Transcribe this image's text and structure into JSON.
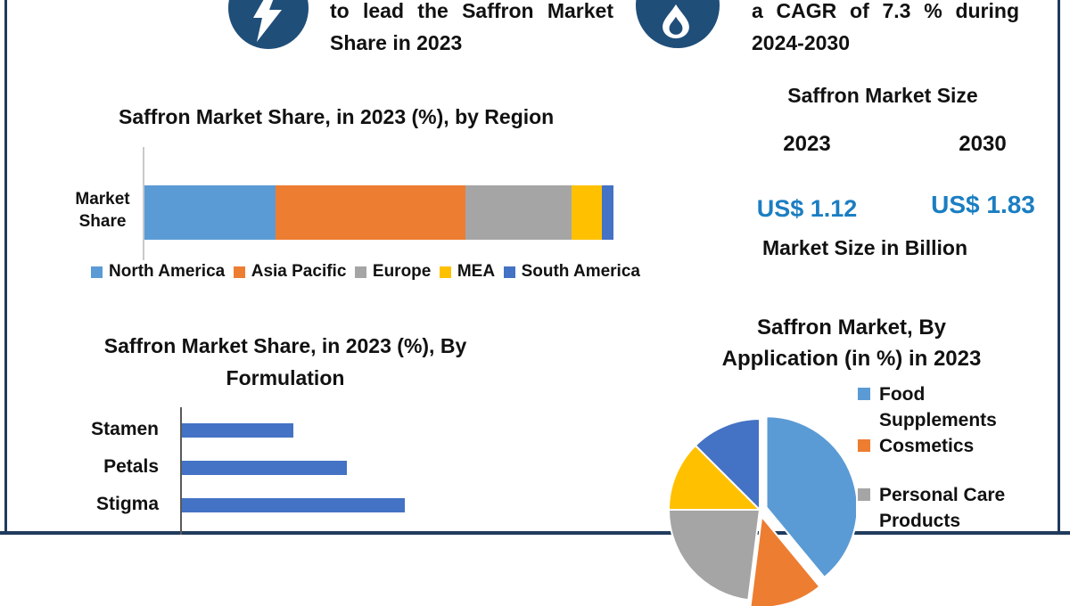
{
  "page": {
    "background": "#ffffff",
    "frame_color": "#1f3b5c",
    "icon_circle_color": "#1f4e79",
    "value_text_color": "#1b7ec2"
  },
  "header": {
    "highlight_region": {
      "icon": "lightning-icon",
      "text": "to lead the Saffron Market Share in 2023"
    },
    "highlight_cagr": {
      "icon": "flame-icon",
      "text": "a CAGR of 7.3 % during 2024-2030"
    }
  },
  "market_size": {
    "title": "Saffron Market Size",
    "year_start": "2023",
    "year_end": "2030",
    "value_start": "US$ 1.12",
    "value_end": "US$ 1.83",
    "caption": "Market Size in Billion"
  },
  "chart_data": [
    {
      "type": "bar",
      "subtype": "stacked-horizontal",
      "title": "Saffron Market Share, in 2023 (%), by Region",
      "ylabel": "Market Share",
      "categories": [
        "Market Share"
      ],
      "series": [
        {
          "name": "North America",
          "value": 28,
          "color": "#5B9BD5"
        },
        {
          "name": "Asia Pacific",
          "value": 40.5,
          "color": "#ED7D31"
        },
        {
          "name": "Europe",
          "value": 22.5,
          "color": "#A5A5A5"
        },
        {
          "name": "MEA",
          "value": 6.5,
          "color": "#FFC000"
        },
        {
          "name": "South America",
          "value": 2.5,
          "color": "#4472C4"
        }
      ],
      "legend_position": "bottom",
      "grid": false
    },
    {
      "type": "bar",
      "subtype": "horizontal",
      "title": "Saffron Market Share, in 2023 (%), By Formulation",
      "title_line1": "Saffron Market Share, in 2023 (%), By",
      "title_line2": "Formulation",
      "categories": [
        "Stamen",
        "Petals",
        "Stigma"
      ],
      "values": [
        25,
        37,
        50
      ],
      "bar_color": "#4472C4",
      "grid": false
    },
    {
      "type": "pie",
      "title": "Saffron Market, By Application (in %) in 2023",
      "title_line1": "Saffron Market, By",
      "title_line2": "Application (in %) in 2023",
      "slices": [
        {
          "label": "Food Supplements",
          "value": 39,
          "color": "#5B9BD5",
          "explode": 8
        },
        {
          "label": "Cosmetics",
          "value": 13,
          "color": "#ED7D31",
          "explode": 8
        },
        {
          "label": "Personal Care Products",
          "value": 23,
          "color": "#A5A5A5",
          "explode": 0
        },
        {
          "label": "",
          "value": 12.5,
          "color": "#FFC000",
          "explode": 0
        },
        {
          "label": "",
          "value": 12.5,
          "color": "#4472C4",
          "explode": 0
        }
      ],
      "legend_position": "right"
    }
  ]
}
